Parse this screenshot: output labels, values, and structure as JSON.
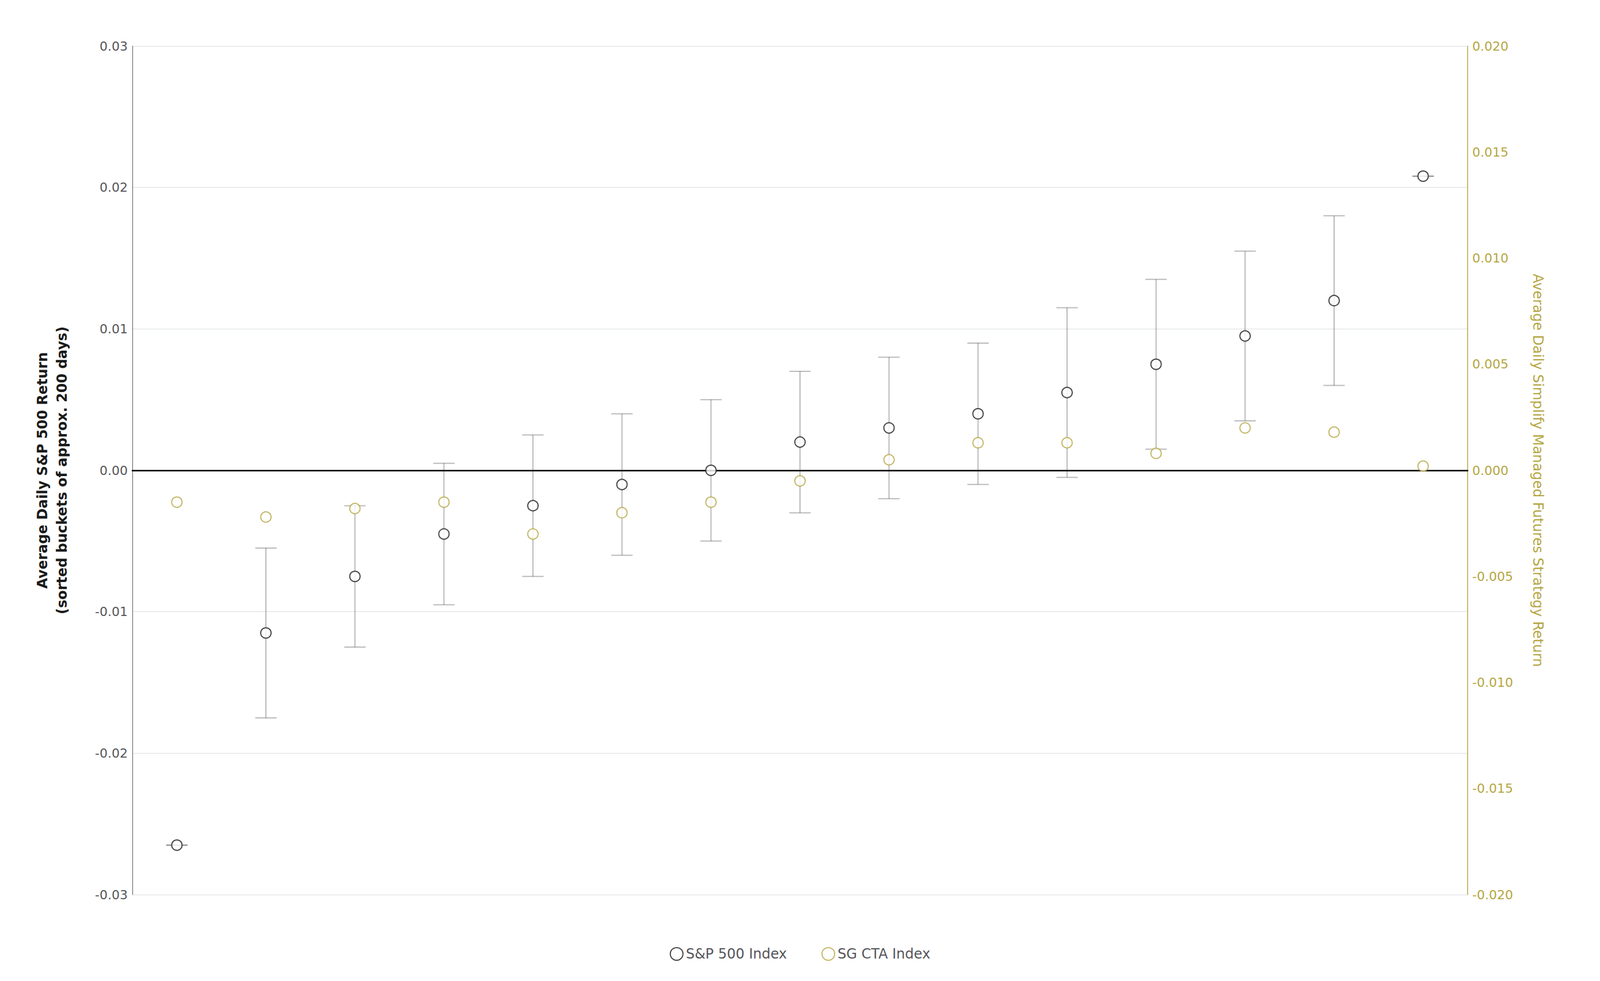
{
  "chart_data": {
    "type": "scatter",
    "categories": [
      null,
      null,
      null,
      null,
      null,
      null,
      null,
      null,
      null,
      null,
      null,
      null,
      null,
      null,
      null
    ],
    "ylabel": "Average Daily S&P 500 Return\n(sorted buckets of approx. 200 days)",
    "y2label": "Average Daily Simplify Managed Futures Strategy Return",
    "ylim": [
      -0.03,
      0.03
    ],
    "yticks": [
      -0.03,
      -0.02,
      -0.01,
      {
        "value": 0,
        "label": "0.00"
      },
      0.01,
      0.02,
      0.03
    ],
    "y2lim": [
      -0.02,
      0.02
    ],
    "y2ticks": [
      {
        "value": -0.02,
        "label": "-0.020"
      },
      -0.015,
      {
        "value": -0.01,
        "label": "-0.010"
      },
      -0.005,
      {
        "value": 0,
        "label": "0.000"
      },
      0.005,
      {
        "value": 0.01,
        "label": "0.010"
      },
      0.015,
      {
        "value": 0.02,
        "label": "0.020"
      }
    ],
    "series": [
      {
        "name": "S&P 500 Index",
        "color": "#1a1a1a",
        "marker": "circle",
        "values": [
          -0.0265,
          -0.0115,
          -0.0075,
          -0.0045,
          -0.0025,
          -0.001,
          0.0,
          0.002,
          0.003,
          0.004,
          0.0055,
          0.0075,
          0.0095,
          0.012,
          0.0208
        ],
        "errors": [
          0.0,
          0.006,
          0.005,
          0.005,
          0.005,
          0.005,
          0.005,
          0.005,
          0.005,
          0.005,
          0.006,
          0.006,
          0.006,
          0.006,
          0.0
        ]
      },
      {
        "name": "SG CTA Index",
        "color": "#b5a642",
        "marker": "circle",
        "axis": "y2",
        "values": [
          -0.0015,
          -0.0022,
          -0.0018,
          -0.0015,
          -0.003,
          -0.002,
          -0.0015,
          -0.0005,
          0.0005,
          0.0013,
          0.0013,
          0.0008,
          0.002,
          0.0018,
          0.0002
        ]
      }
    ],
    "grid": true,
    "legend": "bottom",
    "tick_labels": "y"
  }
}
